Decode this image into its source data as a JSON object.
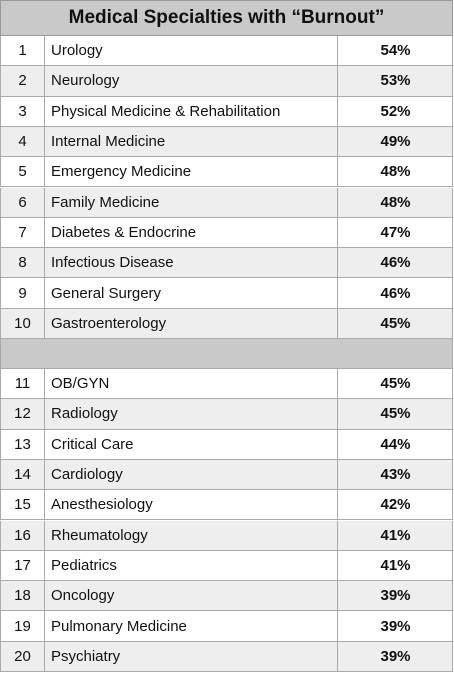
{
  "table": {
    "title": "Medical Specialties with “Burnout”",
    "sections": [
      {
        "rows": [
          [
            1,
            "Urology",
            "54%"
          ],
          [
            2,
            "Neurology",
            "53%"
          ],
          [
            3,
            "Physical Medicine & Rehabilitation",
            "52%"
          ],
          [
            4,
            "Internal Medicine",
            "49%"
          ],
          [
            5,
            "Emergency Medicine",
            "48%"
          ],
          [
            6,
            "Family Medicine",
            "48%"
          ],
          [
            7,
            "Diabetes & Endocrine",
            "47%"
          ],
          [
            8,
            "Infectious Disease",
            "46%"
          ],
          [
            9,
            "General Surgery",
            "46%"
          ],
          [
            10,
            "Gastroenterology",
            "45%"
          ]
        ]
      },
      {
        "rows": [
          [
            11,
            "OB/GYN",
            "45%"
          ],
          [
            12,
            "Radiology",
            "45%"
          ],
          [
            13,
            "Critical Care",
            "44%"
          ],
          [
            14,
            "Cardiology",
            "43%"
          ],
          [
            15,
            "Anesthesiology",
            "42%"
          ],
          [
            16,
            "Rheumatology",
            "41%"
          ],
          [
            17,
            "Pediatrics",
            "41%"
          ],
          [
            18,
            "Oncology",
            "39%"
          ],
          [
            19,
            "Pulmonary Medicine",
            "39%"
          ],
          [
            20,
            "Psychiatry",
            "39%"
          ]
        ]
      }
    ]
  }
}
